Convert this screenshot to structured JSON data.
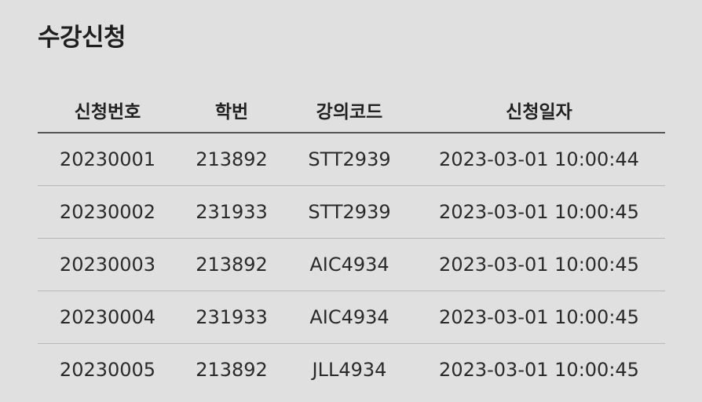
{
  "title": "수강신청",
  "table": {
    "headers": [
      "신청번호",
      "학번",
      "강의코드",
      "신청일자"
    ],
    "rows": [
      [
        "20230001",
        "213892",
        "STT2939",
        "2023-03-01 10:00:44"
      ],
      [
        "20230002",
        "231933",
        "STT2939",
        "2023-03-01 10:00:45"
      ],
      [
        "20230003",
        "213892",
        "AIC4934",
        "2023-03-01 10:00:45"
      ],
      [
        "20230004",
        "231933",
        "AIC4934",
        "2023-03-01 10:00:45"
      ],
      [
        "20230005",
        "213892",
        "JLL4934",
        "2023-03-01 10:00:45"
      ]
    ]
  },
  "colors": {
    "background": "#e0e0e0",
    "text": "#222222",
    "header_rule": "#555555",
    "row_rule": "#b8b8b8"
  }
}
